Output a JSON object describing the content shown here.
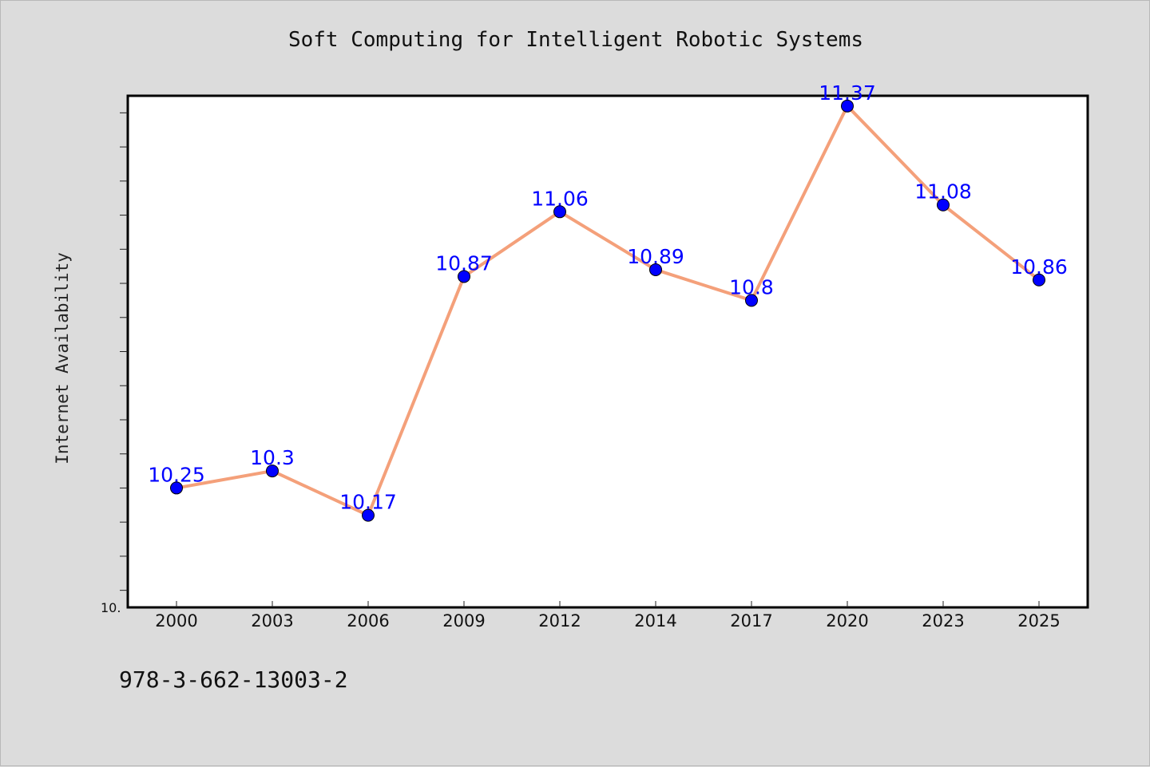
{
  "chart_data": {
    "type": "line",
    "title": "Soft Computing for Intelligent Robotic Systems",
    "xlabel": "",
    "ylabel": "Internet Availability",
    "categories": [
      "2000",
      "2003",
      "2006",
      "2009",
      "2012",
      "2014",
      "2017",
      "2020",
      "2023",
      "2025"
    ],
    "series": [
      {
        "values": [
          10.25,
          10.3,
          10.17,
          10.87,
          11.06,
          10.89,
          10.8,
          11.37,
          11.08,
          10.86
        ]
      }
    ],
    "ylim": [
      9.9,
      11.4
    ],
    "y_tick_labels": [
      "10."
    ],
    "grid": false,
    "legend": "none"
  },
  "footer": {
    "isbn": "978-3-662-13003-2"
  },
  "colors": {
    "background": "#dcdcdc",
    "plot_background": "#ffffff",
    "line": "#f4a07a",
    "marker": "#0000ff",
    "data_label": "#0000ff"
  }
}
